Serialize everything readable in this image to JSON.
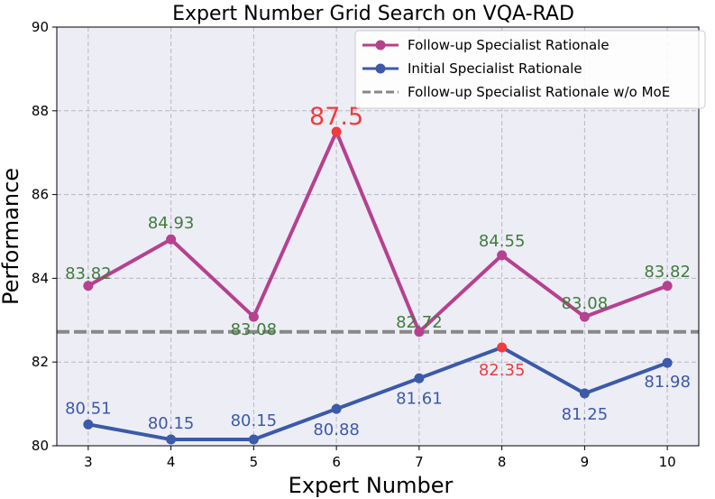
{
  "chart_data": {
    "type": "line",
    "title": "Expert Number Grid Search on VQA-RAD",
    "xlabel": "Expert Number",
    "ylabel": "Performance",
    "categories": [
      3,
      4,
      5,
      6,
      7,
      8,
      9,
      10
    ],
    "x_ticks": [
      "3",
      "4",
      "5",
      "6",
      "7",
      "8",
      "9",
      "10"
    ],
    "y_ticks": [
      "80",
      "82",
      "84",
      "86",
      "88",
      "90"
    ],
    "xlim": [
      2.62,
      10.38
    ],
    "ylim": [
      80,
      90
    ],
    "grid": true,
    "legend_position": "top-right",
    "series": [
      {
        "name": "Follow-up Specialist Rationale",
        "color": "#b5418f",
        "values": [
          83.82,
          84.93,
          83.08,
          87.5,
          82.72,
          84.55,
          83.08,
          83.82
        ],
        "labels": [
          "83.82",
          "84.93",
          "83.08",
          "87.5",
          "82.72",
          "84.55",
          "83.08",
          "83.82"
        ],
        "label_color": "#3f7d3a",
        "highlight_index": 3,
        "highlight_color": "#f03c3c"
      },
      {
        "name": "Initial Specialist Rationale",
        "color": "#3b5aa9",
        "values": [
          80.51,
          80.15,
          80.15,
          80.88,
          81.61,
          82.35,
          81.25,
          81.98
        ],
        "labels": [
          "80.51",
          "80.15",
          "80.15",
          "80.88",
          "81.61",
          "82.35",
          "81.25",
          "81.98"
        ],
        "label_color": "#3b5aa9",
        "highlight_index": 5,
        "highlight_color": "#f03c3c"
      }
    ],
    "reference_line": {
      "name": "Follow-up Specialist Rationale w/o MoE",
      "value": 82.72,
      "color": "#888888"
    },
    "colors": {
      "plot_background": "#ededf6",
      "grid": "#b8b8c4"
    }
  }
}
